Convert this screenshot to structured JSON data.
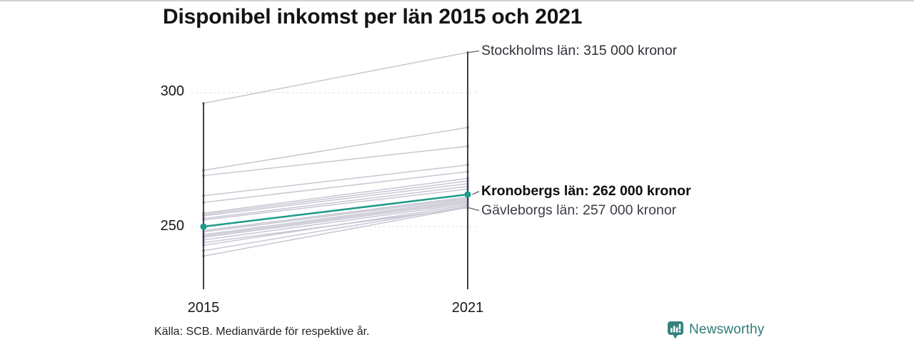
{
  "page": {
    "title": "Disponibel inkomst per län 2015 och 2021",
    "source_note": "Källa: SCB. Medianvärde för respektive år.",
    "brand": {
      "name": "Newsworthy",
      "icon": "newsworthy-chart-bubble-icon",
      "icon_color": "#35827d",
      "text_color": "#2e7b75"
    }
  },
  "chart_data": {
    "type": "line",
    "subtype": "slopegraph",
    "title": "Disponibel inkomst per län 2015 och 2021",
    "x_labels": [
      "2015",
      "2021"
    ],
    "y_ticks": [
      {
        "label": "300",
        "value": 300
      },
      {
        "label": "250",
        "value": 250
      }
    ],
    "ylim": [
      226,
      320
    ],
    "grid": "dotted-horizontal-at-ticks",
    "legend": "none",
    "series": [
      {
        "name": "Stockholms län",
        "y2015": 296,
        "y2021": 315,
        "labeled": true
      },
      {
        "y2015": 271,
        "y2021": 287
      },
      {
        "y2015": 269,
        "y2021": 280
      },
      {
        "y2015": 261.5,
        "y2021": 273
      },
      {
        "y2015": 259,
        "y2021": 270.5
      },
      {
        "y2015": 255,
        "y2021": 268
      },
      {
        "y2015": 254.5,
        "y2021": 267
      },
      {
        "y2015": 254,
        "y2021": 266
      },
      {
        "y2015": 253,
        "y2021": 265
      },
      {
        "y2015": 252.5,
        "y2021": 264
      },
      {
        "name": "Kronobergs län",
        "y2015": 250,
        "y2021": 262,
        "labeled": true,
        "highlight": true
      },
      {
        "y2015": 248.5,
        "y2021": 261
      },
      {
        "y2015": 248,
        "y2021": 260.5
      },
      {
        "y2015": 247,
        "y2021": 260
      },
      {
        "y2015": 246.5,
        "y2021": 259.5
      },
      {
        "y2015": 246,
        "y2021": 259
      },
      {
        "y2015": 245,
        "y2021": 258.5
      },
      {
        "name": "Gävleborgs län",
        "y2015": 244,
        "y2021": 257,
        "labeled": true
      },
      {
        "y2015": 243,
        "y2021": 258
      },
      {
        "y2015": 241,
        "y2021": 257.5
      },
      {
        "y2015": 239,
        "y2021": 257.2
      }
    ],
    "annotations": [
      {
        "text": "Stockholms län: 315 000 kronor",
        "value": 315,
        "bold": false
      },
      {
        "text": "Kronobergs län: 262 000 kronor",
        "value": 262,
        "bold": true
      },
      {
        "text": "Gävleborgs län: 257 000 kronor",
        "value": 257,
        "bold": false
      }
    ],
    "colors": {
      "line": "#c8c6d3",
      "highlight": "#1e9b89",
      "axis": "#2c2c2c",
      "gridline": "#d9d9df",
      "connector": "#63666e"
    }
  }
}
